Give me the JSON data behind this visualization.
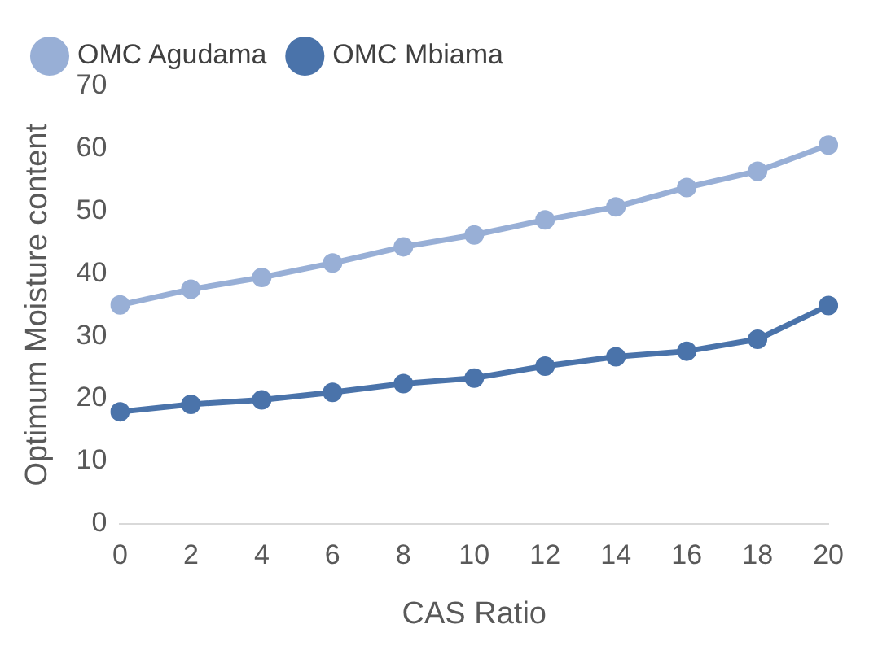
{
  "chart_data": {
    "type": "line",
    "xlabel": "CAS Ratio",
    "ylabel": "Optimum Moisture content",
    "categories": [
      "0",
      "2",
      "4",
      "6",
      "8",
      "10",
      "12",
      "14",
      "16",
      "18",
      "20"
    ],
    "series": [
      {
        "name": "OMC Agudama",
        "color": "#98afd6",
        "values": [
          35,
          37.5,
          39.4,
          41.7,
          44.3,
          46.2,
          48.6,
          50.7,
          53.8,
          56.4,
          60.6
        ]
      },
      {
        "name": "OMC Mbiama",
        "color": "#4a73aa",
        "values": [
          17.9,
          19.1,
          19.8,
          21,
          22.4,
          23.3,
          25.2,
          26.7,
          27.6,
          29.5,
          34.9
        ]
      }
    ],
    "ylim": [
      0,
      70
    ],
    "yticks": [
      0,
      10,
      20,
      30,
      40,
      50,
      60,
      70
    ],
    "grid": false,
    "legend": "top left",
    "marker": "circle",
    "line_style": "solid"
  }
}
